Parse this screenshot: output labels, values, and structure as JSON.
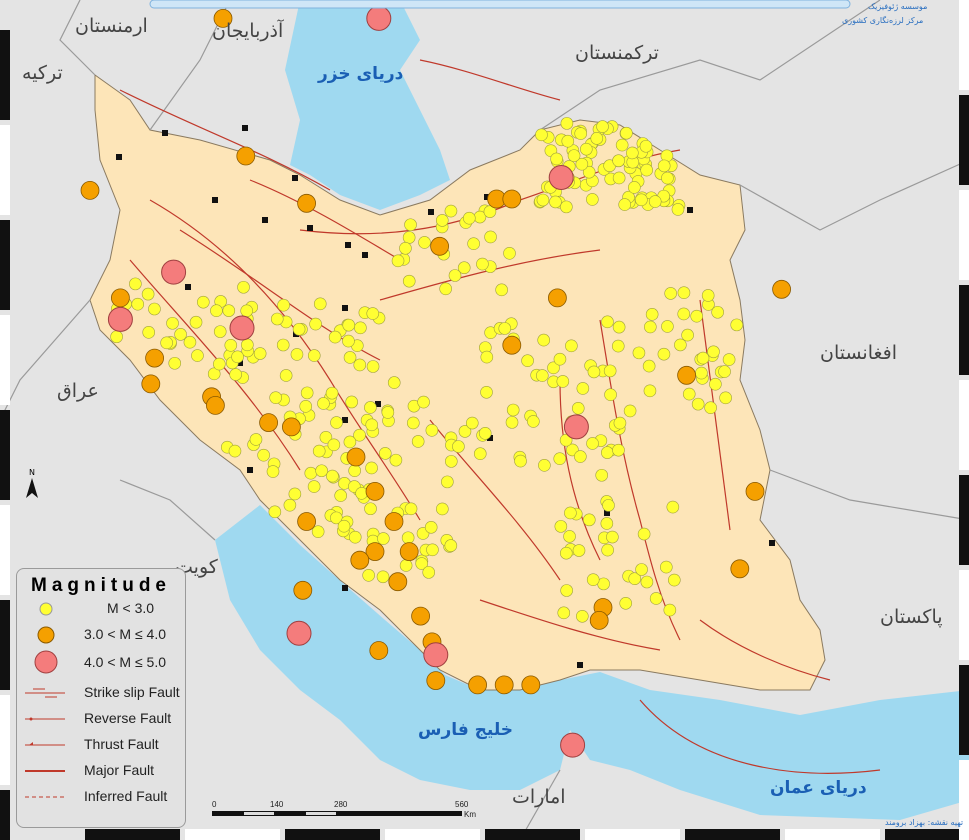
{
  "header": {
    "org_line1": "موسسه ژئوفیزیک",
    "org_line2": "مرکز لرزه‌نگاری کشوری"
  },
  "credit": "تهیه نقشه: بهزاد برومند",
  "labels": {
    "armenia": "ارمنستان",
    "azerbaijan": "آذربایجان",
    "turkmenistan": "ترکمنستان",
    "turkey": "ترکیه",
    "caspian": "دریای خزر",
    "afghanistan": "افغانستان",
    "iraq": "عراق",
    "kuwait": "کویت",
    "pakistan": "پاکستان",
    "persian_gulf": "خلیج فارس",
    "uae": "امارات",
    "oman_sea": "دریای عمان"
  },
  "north_label": "N",
  "legend": {
    "title": "Magnitude",
    "items": [
      {
        "label": "M < 3.0",
        "color": "#ffff33"
      },
      {
        "label": "3.0 < M ≤ 4.0",
        "color": "#f5a000"
      },
      {
        "label": "4.0 < M ≤ 5.0",
        "color": "#f47c7c"
      },
      {
        "label": "Strike slip Fault",
        "color": "#c0392b"
      },
      {
        "label": "Reverse Fault",
        "color": "#c0392b"
      },
      {
        "label": "Thrust Fault",
        "color": "#c0392b"
      },
      {
        "label": "Major Fault",
        "color": "#c0392b"
      },
      {
        "label": "Inferred Fault",
        "color": "#c0392b"
      }
    ]
  },
  "scale": {
    "ticks": [
      "0",
      "140",
      "280",
      "560"
    ],
    "unit": "Km"
  },
  "colors": {
    "land": "#fde5b8",
    "neighbors": "#e4e4e4",
    "sea": "#9fd9f0",
    "fault": "#c0392b",
    "small": "#ffff33",
    "medium": "#f5a000",
    "large": "#f47c7c"
  },
  "events": {
    "large": [
      [
        51.6,
        41.0
      ],
      [
        56.4,
        37.3
      ],
      [
        46.2,
        35.1
      ],
      [
        44.8,
        34.0
      ],
      [
        48.0,
        33.8
      ],
      [
        56.8,
        31.5
      ],
      [
        49.5,
        26.7
      ],
      [
        53.1,
        26.2
      ],
      [
        56.7,
        24.1
      ]
    ],
    "medium": [
      [
        47.5,
        41.0
      ],
      [
        48.1,
        37.8
      ],
      [
        44.0,
        37.0
      ],
      [
        49.7,
        36.7
      ],
      [
        54.7,
        36.8
      ],
      [
        55.1,
        36.8
      ],
      [
        53.2,
        35.7
      ],
      [
        44.8,
        34.5
      ],
      [
        45.7,
        33.1
      ],
      [
        45.6,
        32.5
      ],
      [
        47.2,
        32.2
      ],
      [
        47.3,
        32.0
      ],
      [
        48.7,
        31.6
      ],
      [
        49.3,
        31.5
      ],
      [
        55.1,
        33.4
      ],
      [
        56.3,
        34.5
      ],
      [
        62.2,
        34.7
      ],
      [
        59.7,
        32.7
      ],
      [
        51.0,
        30.8
      ],
      [
        51.5,
        30.0
      ],
      [
        49.7,
        29.3
      ],
      [
        52.0,
        29.3
      ],
      [
        51.5,
        28.6
      ],
      [
        51.1,
        28.4
      ],
      [
        52.4,
        28.6
      ],
      [
        52.1,
        27.9
      ],
      [
        49.6,
        27.7
      ],
      [
        52.7,
        27.1
      ],
      [
        53.0,
        26.5
      ],
      [
        51.6,
        26.3
      ],
      [
        53.1,
        25.6
      ],
      [
        54.2,
        25.5
      ],
      [
        54.9,
        25.5
      ],
      [
        55.6,
        25.5
      ],
      [
        57.5,
        27.3
      ],
      [
        57.4,
        27.0
      ],
      [
        61.1,
        28.2
      ],
      [
        61.5,
        30.0
      ]
    ]
  }
}
